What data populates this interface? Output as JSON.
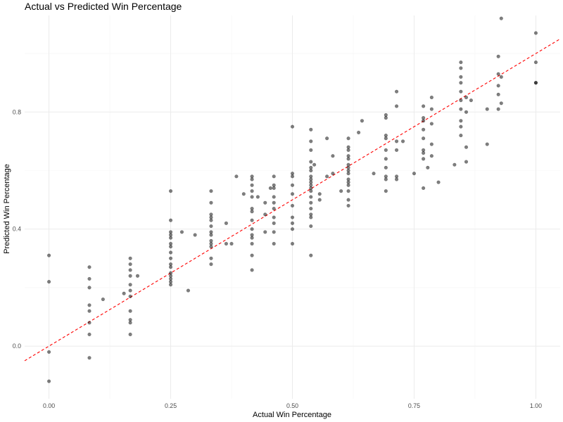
{
  "chart_data": {
    "type": "scatter",
    "title": "Actual vs Predicted Win Percentage",
    "xlabel": "Actual Win Percentage",
    "ylabel": "Predicted Win Percentage",
    "xlim": [
      -0.05,
      1.05
    ],
    "ylim": [
      -0.18,
      1.13
    ],
    "x_ticks": [
      0.0,
      0.25,
      0.5,
      0.75,
      1.0
    ],
    "x_tick_labels": [
      "0.00",
      "0.25",
      "0.50",
      "0.75",
      "1.00"
    ],
    "y_ticks": [
      0.0,
      0.4,
      0.8
    ],
    "y_tick_labels": [
      "0.0",
      "0.4",
      "0.8"
    ],
    "grid": true,
    "reference_line": {
      "slope": 1,
      "intercept": 0,
      "style": "dashed",
      "color": "#ff0000"
    },
    "point_color": "#000000",
    "point_opacity": 0.5,
    "series": [
      {
        "points": [
          [
            0.0,
            0.31
          ],
          [
            0.0,
            0.22
          ],
          [
            0.0,
            -0.02
          ],
          [
            0.0,
            -0.12
          ],
          [
            0.083,
            0.27
          ],
          [
            0.083,
            0.23
          ],
          [
            0.083,
            0.2
          ],
          [
            0.083,
            0.14
          ],
          [
            0.083,
            0.12
          ],
          [
            0.083,
            0.08
          ],
          [
            0.083,
            0.04
          ],
          [
            0.083,
            -0.04
          ],
          [
            0.111,
            0.16
          ],
          [
            0.154,
            0.18
          ],
          [
            0.167,
            0.3
          ],
          [
            0.167,
            0.28
          ],
          [
            0.167,
            0.26
          ],
          [
            0.167,
            0.24
          ],
          [
            0.167,
            0.21
          ],
          [
            0.167,
            0.19
          ],
          [
            0.167,
            0.17
          ],
          [
            0.167,
            0.12
          ],
          [
            0.167,
            0.09
          ],
          [
            0.167,
            0.08
          ],
          [
            0.167,
            0.04
          ],
          [
            0.182,
            0.24
          ],
          [
            0.25,
            0.53
          ],
          [
            0.25,
            0.43
          ],
          [
            0.25,
            0.39
          ],
          [
            0.25,
            0.38
          ],
          [
            0.25,
            0.37
          ],
          [
            0.25,
            0.35
          ],
          [
            0.25,
            0.34
          ],
          [
            0.25,
            0.32
          ],
          [
            0.25,
            0.3
          ],
          [
            0.25,
            0.28
          ],
          [
            0.25,
            0.27
          ],
          [
            0.25,
            0.25
          ],
          [
            0.25,
            0.24
          ],
          [
            0.25,
            0.23
          ],
          [
            0.25,
            0.22
          ],
          [
            0.25,
            0.21
          ],
          [
            0.273,
            0.39
          ],
          [
            0.286,
            0.19
          ],
          [
            0.3,
            0.38
          ],
          [
            0.333,
            0.53
          ],
          [
            0.333,
            0.49
          ],
          [
            0.333,
            0.45
          ],
          [
            0.333,
            0.44
          ],
          [
            0.333,
            0.43
          ],
          [
            0.333,
            0.41
          ],
          [
            0.333,
            0.39
          ],
          [
            0.333,
            0.38
          ],
          [
            0.333,
            0.36
          ],
          [
            0.333,
            0.35
          ],
          [
            0.333,
            0.34
          ],
          [
            0.333,
            0.3
          ],
          [
            0.333,
            0.28
          ],
          [
            0.364,
            0.42
          ],
          [
            0.364,
            0.35
          ],
          [
            0.375,
            0.35
          ],
          [
            0.385,
            0.58
          ],
          [
            0.4,
            0.52
          ],
          [
            0.417,
            0.58
          ],
          [
            0.417,
            0.57
          ],
          [
            0.417,
            0.55
          ],
          [
            0.417,
            0.53
          ],
          [
            0.417,
            0.51
          ],
          [
            0.417,
            0.47
          ],
          [
            0.417,
            0.46
          ],
          [
            0.417,
            0.43
          ],
          [
            0.417,
            0.4
          ],
          [
            0.417,
            0.38
          ],
          [
            0.417,
            0.37
          ],
          [
            0.417,
            0.35
          ],
          [
            0.417,
            0.31
          ],
          [
            0.417,
            0.26
          ],
          [
            0.429,
            0.51
          ],
          [
            0.444,
            0.49
          ],
          [
            0.444,
            0.45
          ],
          [
            0.444,
            0.39
          ],
          [
            0.455,
            0.54
          ],
          [
            0.462,
            0.58
          ],
          [
            0.462,
            0.55
          ],
          [
            0.462,
            0.54
          ],
          [
            0.462,
            0.51
          ],
          [
            0.462,
            0.49
          ],
          [
            0.462,
            0.47
          ],
          [
            0.462,
            0.44
          ],
          [
            0.462,
            0.42
          ],
          [
            0.462,
            0.39
          ],
          [
            0.462,
            0.35
          ],
          [
            0.5,
            0.75
          ],
          [
            0.5,
            0.59
          ],
          [
            0.5,
            0.58
          ],
          [
            0.5,
            0.55
          ],
          [
            0.5,
            0.52
          ],
          [
            0.5,
            0.48
          ],
          [
            0.5,
            0.44
          ],
          [
            0.5,
            0.42
          ],
          [
            0.5,
            0.4
          ],
          [
            0.5,
            0.35
          ],
          [
            0.538,
            0.74
          ],
          [
            0.538,
            0.7
          ],
          [
            0.538,
            0.67
          ],
          [
            0.538,
            0.63
          ],
          [
            0.538,
            0.61
          ],
          [
            0.538,
            0.6
          ],
          [
            0.538,
            0.58
          ],
          [
            0.538,
            0.57
          ],
          [
            0.538,
            0.56
          ],
          [
            0.538,
            0.55
          ],
          [
            0.538,
            0.54
          ],
          [
            0.538,
            0.53
          ],
          [
            0.538,
            0.51
          ],
          [
            0.538,
            0.49
          ],
          [
            0.538,
            0.47
          ],
          [
            0.538,
            0.45
          ],
          [
            0.538,
            0.44
          ],
          [
            0.538,
            0.41
          ],
          [
            0.538,
            0.31
          ],
          [
            0.545,
            0.62
          ],
          [
            0.556,
            0.5
          ],
          [
            0.556,
            0.52
          ],
          [
            0.571,
            0.71
          ],
          [
            0.571,
            0.58
          ],
          [
            0.583,
            0.59
          ],
          [
            0.583,
            0.65
          ],
          [
            0.6,
            0.53
          ],
          [
            0.615,
            0.71
          ],
          [
            0.615,
            0.68
          ],
          [
            0.615,
            0.67
          ],
          [
            0.615,
            0.65
          ],
          [
            0.615,
            0.64
          ],
          [
            0.615,
            0.62
          ],
          [
            0.615,
            0.61
          ],
          [
            0.615,
            0.6
          ],
          [
            0.615,
            0.59
          ],
          [
            0.615,
            0.57
          ],
          [
            0.615,
            0.56
          ],
          [
            0.615,
            0.55
          ],
          [
            0.615,
            0.53
          ],
          [
            0.615,
            0.5
          ],
          [
            0.615,
            0.48
          ],
          [
            0.636,
            0.73
          ],
          [
            0.643,
            0.77
          ],
          [
            0.667,
            0.59
          ],
          [
            0.692,
            0.79
          ],
          [
            0.692,
            0.78
          ],
          [
            0.692,
            0.72
          ],
          [
            0.692,
            0.71
          ],
          [
            0.692,
            0.67
          ],
          [
            0.692,
            0.64
          ],
          [
            0.692,
            0.61
          ],
          [
            0.692,
            0.58
          ],
          [
            0.692,
            0.57
          ],
          [
            0.692,
            0.53
          ],
          [
            0.714,
            0.87
          ],
          [
            0.714,
            0.82
          ],
          [
            0.714,
            0.7
          ],
          [
            0.714,
            0.67
          ],
          [
            0.714,
            0.58
          ],
          [
            0.714,
            0.57
          ],
          [
            0.727,
            0.7
          ],
          [
            0.75,
            0.59
          ],
          [
            0.769,
            0.82
          ],
          [
            0.769,
            0.78
          ],
          [
            0.769,
            0.77
          ],
          [
            0.769,
            0.74
          ],
          [
            0.769,
            0.71
          ],
          [
            0.769,
            0.67
          ],
          [
            0.769,
            0.66
          ],
          [
            0.769,
            0.64
          ],
          [
            0.769,
            0.54
          ],
          [
            0.778,
            0.61
          ],
          [
            0.786,
            0.85
          ],
          [
            0.786,
            0.81
          ],
          [
            0.786,
            0.76
          ],
          [
            0.786,
            0.69
          ],
          [
            0.786,
            0.65
          ],
          [
            0.8,
            0.56
          ],
          [
            0.833,
            0.62
          ],
          [
            0.846,
            0.97
          ],
          [
            0.846,
            0.95
          ],
          [
            0.846,
            0.92
          ],
          [
            0.846,
            0.9
          ],
          [
            0.846,
            0.87
          ],
          [
            0.846,
            0.84
          ],
          [
            0.846,
            0.81
          ],
          [
            0.846,
            0.77
          ],
          [
            0.846,
            0.75
          ],
          [
            0.846,
            0.72
          ],
          [
            0.857,
            0.85
          ],
          [
            0.857,
            0.8
          ],
          [
            0.857,
            0.68
          ],
          [
            0.857,
            0.63
          ],
          [
            0.867,
            0.84
          ],
          [
            0.9,
            0.81
          ],
          [
            0.9,
            0.69
          ],
          [
            0.923,
            0.99
          ],
          [
            0.923,
            0.93
          ],
          [
            0.923,
            0.89
          ],
          [
            0.923,
            0.86
          ],
          [
            0.923,
            0.81
          ],
          [
            0.929,
            1.12
          ],
          [
            0.929,
            0.92
          ],
          [
            0.929,
            0.83
          ],
          [
            1.0,
            1.07
          ],
          [
            1.0,
            0.97
          ],
          [
            1.0,
            0.9
          ],
          [
            1.0,
            0.9
          ]
        ]
      }
    ]
  }
}
